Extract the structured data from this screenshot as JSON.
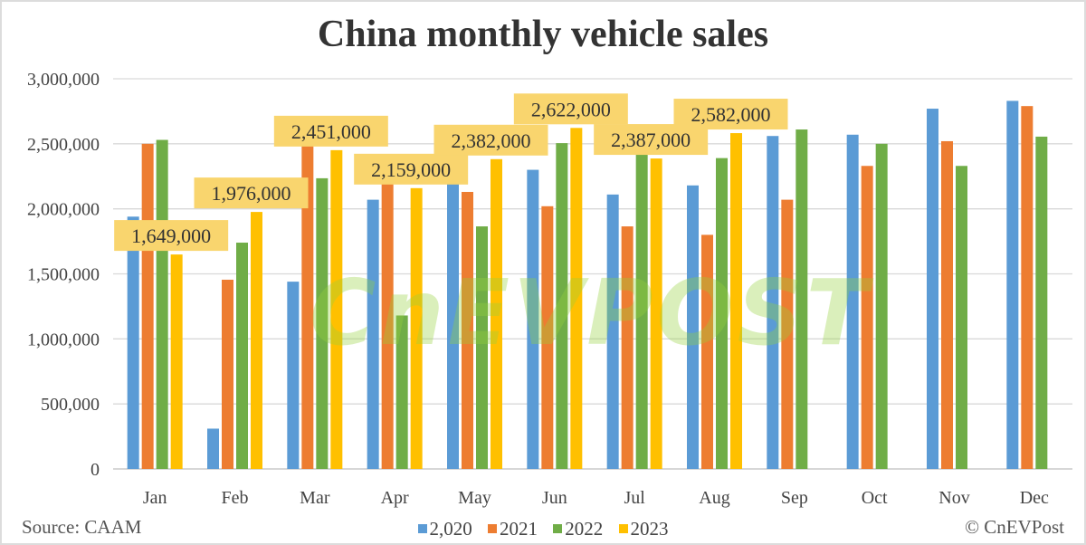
{
  "chart_data": {
    "type": "bar",
    "title": "China monthly vehicle sales",
    "categories": [
      "Jan",
      "Feb",
      "Mar",
      "Apr",
      "May",
      "Jun",
      "Jul",
      "Aug",
      "Sep",
      "Oct",
      "Nov",
      "Dec"
    ],
    "series": [
      {
        "name": "2,020",
        "color": "#5B9BD5",
        "values": [
          1940000,
          310000,
          1440000,
          2070000,
          2190000,
          2300000,
          2110000,
          2180000,
          2560000,
          2570000,
          2770000,
          2830000
        ]
      },
      {
        "name": "2021",
        "color": "#ED7D31",
        "values": [
          2500000,
          1455000,
          2530000,
          2250000,
          2130000,
          2020000,
          1865000,
          1800000,
          2070000,
          2330000,
          2520000,
          2790000
        ]
      },
      {
        "name": "2022",
        "color": "#70AD47",
        "values": [
          2530000,
          1740000,
          2235000,
          1180000,
          1865000,
          2505000,
          2420000,
          2390000,
          2610000,
          2500000,
          2330000,
          2555000
        ]
      },
      {
        "name": "2023",
        "color": "#FFC000",
        "values": [
          1649000,
          1976000,
          2451000,
          2159000,
          2382000,
          2622000,
          2387000,
          2582000,
          null,
          null,
          null,
          null
        ]
      }
    ],
    "data_labels": [
      "1,649,000",
      "1,976,000",
      "2,451,000",
      "2,159,000",
      "2,382,000",
      "2,622,000",
      "2,387,000",
      "2,582,000"
    ],
    "ylim": [
      0,
      3000000
    ],
    "yticks": [
      "0",
      "500,000",
      "1,000,000",
      "1,500,000",
      "2,000,000",
      "2,500,000",
      "3,000,000"
    ],
    "grid": true,
    "legend_position": "bottom",
    "label_bg_color": "#F9D56E"
  },
  "footer": {
    "source": "Source: CAAM",
    "credit": "© CnEVPost"
  },
  "watermark": "CnEVPOST"
}
